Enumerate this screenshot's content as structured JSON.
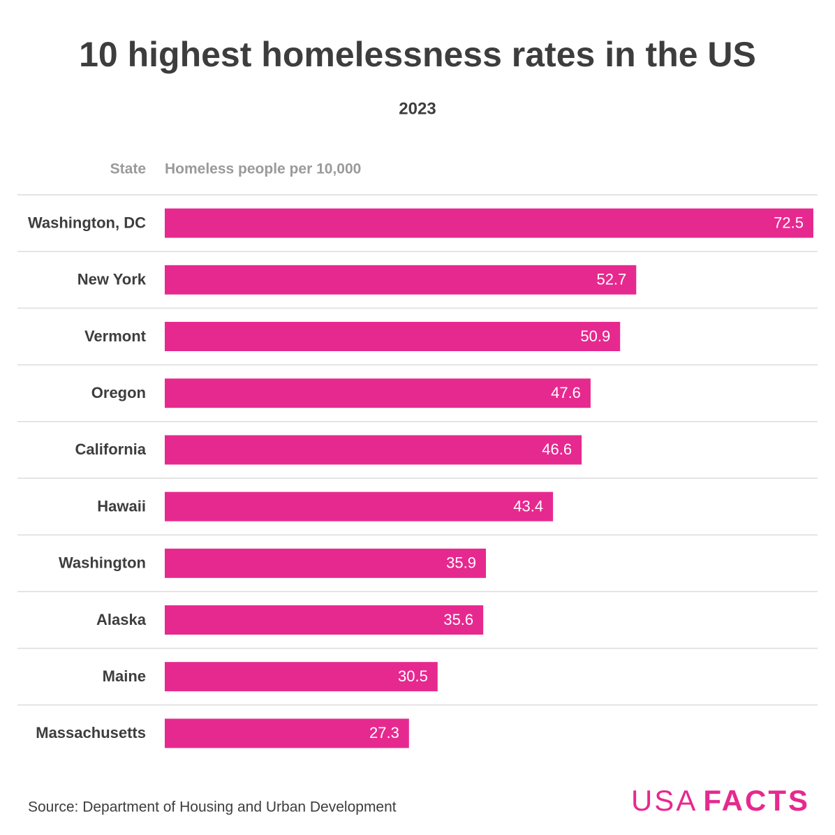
{
  "chart_data": {
    "type": "bar",
    "orientation": "horizontal",
    "title": "10 highest homelessness rates in the US",
    "subtitle": "2023",
    "category_header": "State",
    "value_header": "Homeless people per 10,000",
    "categories": [
      "Washington, DC",
      "New York",
      "Vermont",
      "Oregon",
      "California",
      "Hawaii",
      "Washington",
      "Alaska",
      "Maine",
      "Massachusetts"
    ],
    "values": [
      72.5,
      52.7,
      50.9,
      47.6,
      46.6,
      43.4,
      35.9,
      35.6,
      30.5,
      27.3
    ],
    "color": "#e6298f",
    "xlim": [
      0,
      72.5
    ],
    "source": "Source: Department of Housing and Urban Development",
    "logo": [
      "USA",
      "FACTS"
    ]
  }
}
